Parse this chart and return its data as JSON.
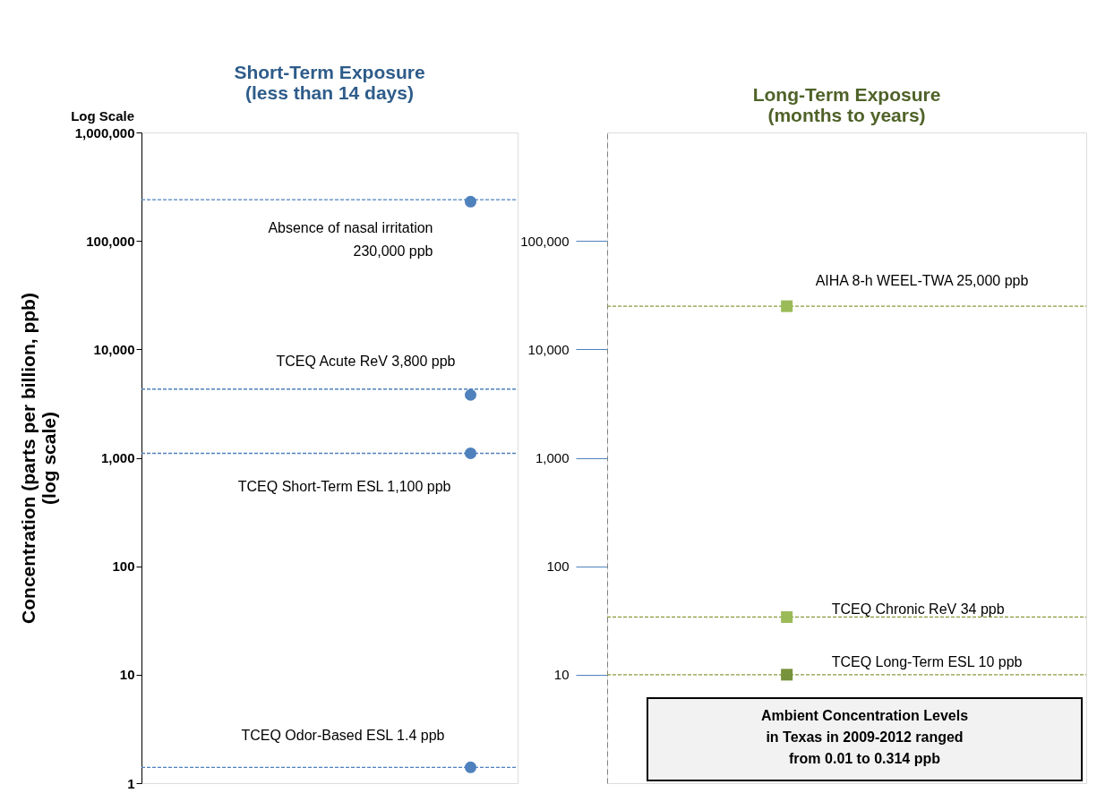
{
  "chart_data": [
    {
      "type": "scatter",
      "title": "Short-Term Exposure (less than 14 days)",
      "ylabel": "Concentration  (parts per billion, ppb) (log scale)",
      "categories": [
        null,
        null,
        null,
        null
      ],
      "ylim": [
        1,
        1000000
      ],
      "yticks": [
        {
          "value": 1,
          "label": "1"
        },
        {
          "value": 10,
          "label": "10"
        },
        {
          "value": 100,
          "label": "100"
        },
        {
          "value": 1000,
          "label": "1,000"
        },
        {
          "value": 10000,
          "label": "10,000"
        },
        {
          "value": 100000,
          "label": "100,000"
        },
        {
          "value": 1000000,
          "label": "1,000,000"
        }
      ],
      "log": true,
      "grid": false,
      "legend": false,
      "marker": "circle",
      "annotations": [
        "Log Scale"
      ],
      "series": [
        {
          "name": "Absence of nasal irritation 230,000 ppb",
          "color": "#4f81bd",
          "values": [
            null,
            null,
            null,
            230000
          ]
        },
        {
          "name": "TCEQ Acute ReV  3,800 ppb",
          "color": "#4f81bd",
          "values": [
            null,
            null,
            null,
            3800
          ]
        },
        {
          "name": "TCEQ Short-Term ESL  1,100 ppb",
          "color": "#4f81bd",
          "values": [
            null,
            null,
            null,
            1100
          ]
        },
        {
          "name": "TCEQ Odor-Based ESL 1.4 ppb",
          "color": "#4f81bd",
          "values": [
            null,
            null,
            null,
            1.4
          ]
        }
      ],
      "ref_lines": [
        {
          "axis": "y",
          "value": 240000,
          "color": "#4f81bd",
          "line_style": "dashed"
        },
        {
          "axis": "y",
          "value": 4300,
          "color": "#4f81bd",
          "line_style": "dashed"
        },
        {
          "axis": "y",
          "value": 1100,
          "color": "#4f81bd",
          "line_style": "dashed"
        },
        {
          "axis": "y",
          "value": 1.4,
          "color": "#4f81bd",
          "line_style": "dashed"
        }
      ]
    },
    {
      "type": "scatter",
      "title": "Long-Term Exposure (months to years)",
      "categories": [
        null,
        null,
        null,
        null
      ],
      "ylim": [
        1,
        1000000
      ],
      "yticks": [
        {
          "value": 10,
          "label": "10"
        },
        {
          "value": 100,
          "label": "100"
        },
        {
          "value": 1000,
          "label": "1,000"
        },
        {
          "value": 10000,
          "label": "10,000"
        },
        {
          "value": 100000,
          "label": "100,000"
        }
      ],
      "log": true,
      "grid": false,
      "legend": false,
      "marker": "square",
      "annotations": [
        "Ambient Concentration Levels in Texas  in 2009-2012  ranged from 0.01 to 0.314 ppb"
      ],
      "series": [
        {
          "name": "AIHA 8-h WEEL-TWA 25,000 ppb",
          "color": "#9bbb59",
          "values": [
            null,
            25000,
            null,
            null
          ]
        },
        {
          "name": "TCEQ Chronic ReV  34 ppb",
          "color": "#9bbb59",
          "values": [
            null,
            34,
            null,
            null
          ]
        },
        {
          "name": "TCEQ Long-Term ESL  10 ppb",
          "color": "#77933c",
          "values": [
            null,
            10,
            null,
            null
          ]
        }
      ],
      "ref_lines": [
        {
          "axis": "y",
          "value": 25000,
          "color": "#8a9a3c",
          "line_style": "dashed"
        },
        {
          "axis": "y",
          "value": 34,
          "color": "#8a9a3c",
          "line_style": "dashed"
        },
        {
          "axis": "y",
          "value": 10,
          "color": "#8a9a3c",
          "line_style": "dashed"
        }
      ]
    }
  ]
}
